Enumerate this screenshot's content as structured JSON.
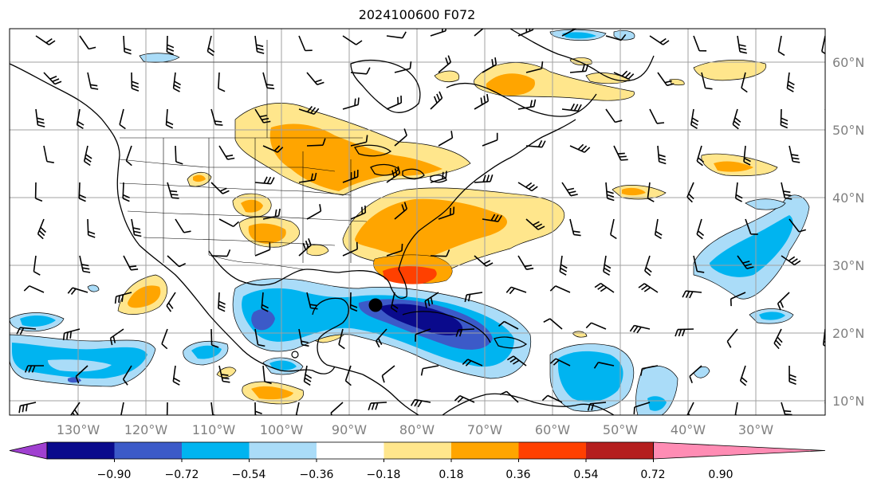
{
  "title": "2024100600 F072",
  "longitude_labels": [
    "130°W",
    "120°W",
    "110°W",
    "100°W",
    "90°W",
    "80°W",
    "70°W",
    "60°W",
    "50°W",
    "40°W",
    "30°W"
  ],
  "latitude_labels": [
    "60°N",
    "50°N",
    "40°N",
    "30°N",
    "20°N",
    "10°N"
  ],
  "colorbar": {
    "ticks": [
      "−0.90",
      "−0.72",
      "−0.54",
      "−0.36",
      "−0.18",
      "0.18",
      "0.36",
      "0.54",
      "0.72",
      "0.90"
    ],
    "colors": [
      "#a040d0",
      "#0a0a8c",
      "#3c5ac8",
      "#00b4f0",
      "#aadcf8",
      "#ffffff",
      "#ffe68c",
      "#ffa500",
      "#ff4000",
      "#b41e1e",
      "#ff8cb4"
    ],
    "extend": "both"
  },
  "map": {
    "lon_range": [
      -138,
      -24
    ],
    "lat_range": [
      8,
      65
    ],
    "grid": true,
    "coastline_color": "#000000",
    "marker": {
      "name": "storm-center",
      "lon": -85.5,
      "lat": 24.0
    },
    "wind_barbs": "black"
  }
}
